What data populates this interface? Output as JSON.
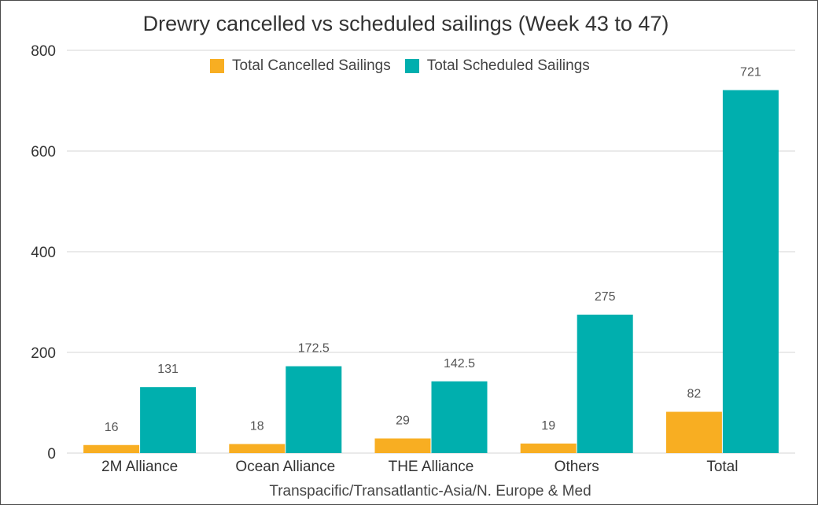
{
  "chart_data": {
    "type": "bar",
    "title": "Drewry cancelled vs scheduled sailings (Week 43 to 47)",
    "xlabel": "Transpacific/Transatlantic-Asia/N. Europe & Med",
    "ylabel": "",
    "ylim": [
      0,
      800
    ],
    "yticks": [
      "0",
      "200",
      "400",
      "600",
      "800"
    ],
    "grid": true,
    "legend_position": "top-center",
    "categories": [
      "2M Alliance",
      "Ocean Alliance",
      "THE Alliance",
      "Others",
      "Total"
    ],
    "series": [
      {
        "name": "Total Cancelled Sailings",
        "color": "#F8AE22",
        "values": [
          16,
          18,
          29,
          19,
          82
        ],
        "labels": [
          "16",
          "18",
          "29",
          "19",
          "82"
        ]
      },
      {
        "name": "Total Scheduled Sailings",
        "color": "#00AFAE",
        "values": [
          131,
          172.5,
          142.5,
          275,
          721
        ],
        "labels": [
          "131",
          "172.5",
          "142.5",
          "275",
          "721"
        ]
      }
    ]
  }
}
